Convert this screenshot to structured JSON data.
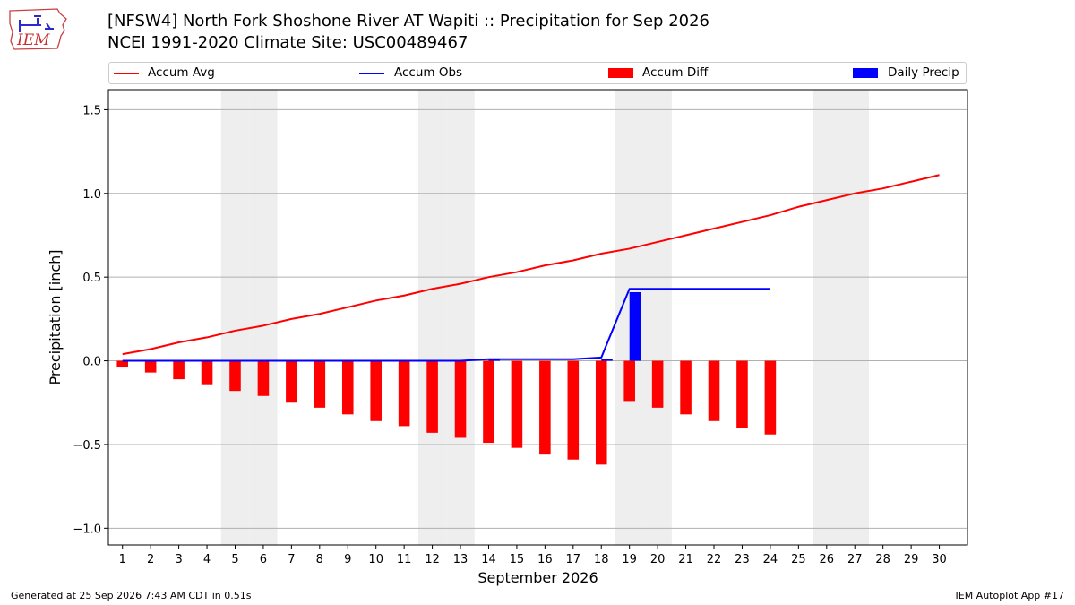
{
  "logo_text": "IEM",
  "header": {
    "title_line1": "[NFSW4] North Fork Shoshone River  AT Wapiti :: Precipitation for Sep 2026",
    "title_line2": "NCEI 1991-2020 Climate Site: USC00489467"
  },
  "legend": {
    "accum_avg": "Accum Avg",
    "accum_obs": "Accum Obs",
    "accum_diff": "Accum Diff",
    "daily_precip": "Daily Precip"
  },
  "footer": {
    "generated": "Generated at 25 Sep 2026 7:43 AM CDT in 0.51s",
    "app": "IEM Autoplot App #17"
  },
  "chart_data": {
    "type": "bar",
    "title": "[NFSW4] North Fork Shoshone River  AT Wapiti :: Precipitation for Sep 2026",
    "xlabel": "September 2026",
    "ylabel": "Precipitation [inch]",
    "ylim": [
      -1.1,
      1.62
    ],
    "xlim": [
      0.5,
      31.0
    ],
    "yticks": [
      -1.0,
      -0.5,
      0.0,
      0.5,
      1.0,
      1.5
    ],
    "ytick_labels": [
      "−1.0",
      "−0.5",
      "0.0",
      "0.5",
      "1.0",
      "1.5"
    ],
    "days": [
      1,
      2,
      3,
      4,
      5,
      6,
      7,
      8,
      9,
      10,
      11,
      12,
      13,
      14,
      15,
      16,
      17,
      18,
      19,
      20,
      21,
      22,
      23,
      24,
      25,
      26,
      27,
      28,
      29,
      30
    ],
    "weekend_days": [
      5,
      6,
      12,
      13,
      19,
      20,
      26,
      27
    ],
    "grid": "y",
    "legend_position": "top",
    "colors": {
      "accum_avg": "#ff0000",
      "accum_obs": "#0000ff",
      "accum_diff": "#ff0000",
      "daily_precip": "#0000ff",
      "weekend_band": "#eeeeee",
      "grid": "#b0b0b0"
    },
    "series": [
      {
        "name": "Accum Avg",
        "kind": "line",
        "x": [
          1,
          2,
          3,
          4,
          5,
          6,
          7,
          8,
          9,
          10,
          11,
          12,
          13,
          14,
          15,
          16,
          17,
          18,
          19,
          20,
          21,
          22,
          23,
          24,
          25,
          26,
          27,
          28,
          29,
          30
        ],
        "values": [
          0.04,
          0.07,
          0.11,
          0.14,
          0.18,
          0.21,
          0.25,
          0.28,
          0.32,
          0.36,
          0.39,
          0.43,
          0.46,
          0.5,
          0.53,
          0.57,
          0.6,
          0.64,
          0.67,
          0.71,
          0.75,
          0.79,
          0.83,
          0.87,
          0.92,
          0.96,
          1.0,
          1.03,
          1.07,
          1.11
        ]
      },
      {
        "name": "Accum Obs",
        "kind": "line",
        "x": [
          1,
          2,
          3,
          4,
          5,
          6,
          7,
          8,
          9,
          10,
          11,
          12,
          13,
          14,
          15,
          16,
          17,
          18,
          19,
          20,
          21,
          22,
          23,
          24
        ],
        "values": [
          0,
          0,
          0,
          0,
          0,
          0,
          0,
          0,
          0,
          0,
          0,
          0,
          0,
          0.01,
          0.01,
          0.01,
          0.01,
          0.02,
          0.43,
          0.43,
          0.43,
          0.43,
          0.43,
          0.43
        ]
      },
      {
        "name": "Accum Diff",
        "kind": "bar",
        "x": [
          1,
          2,
          3,
          4,
          5,
          6,
          7,
          8,
          9,
          10,
          11,
          12,
          13,
          14,
          15,
          16,
          17,
          18,
          19,
          20,
          21,
          22,
          23,
          24
        ],
        "values": [
          -0.04,
          -0.07,
          -0.11,
          -0.14,
          -0.18,
          -0.21,
          -0.25,
          -0.28,
          -0.32,
          -0.36,
          -0.39,
          -0.43,
          -0.46,
          -0.49,
          -0.52,
          -0.56,
          -0.59,
          -0.62,
          -0.24,
          -0.28,
          -0.32,
          -0.36,
          -0.4,
          -0.44
        ]
      },
      {
        "name": "Daily Precip",
        "kind": "bar",
        "x": [
          14,
          18,
          19
        ],
        "values": [
          0.01,
          0.01,
          0.41
        ]
      }
    ]
  }
}
